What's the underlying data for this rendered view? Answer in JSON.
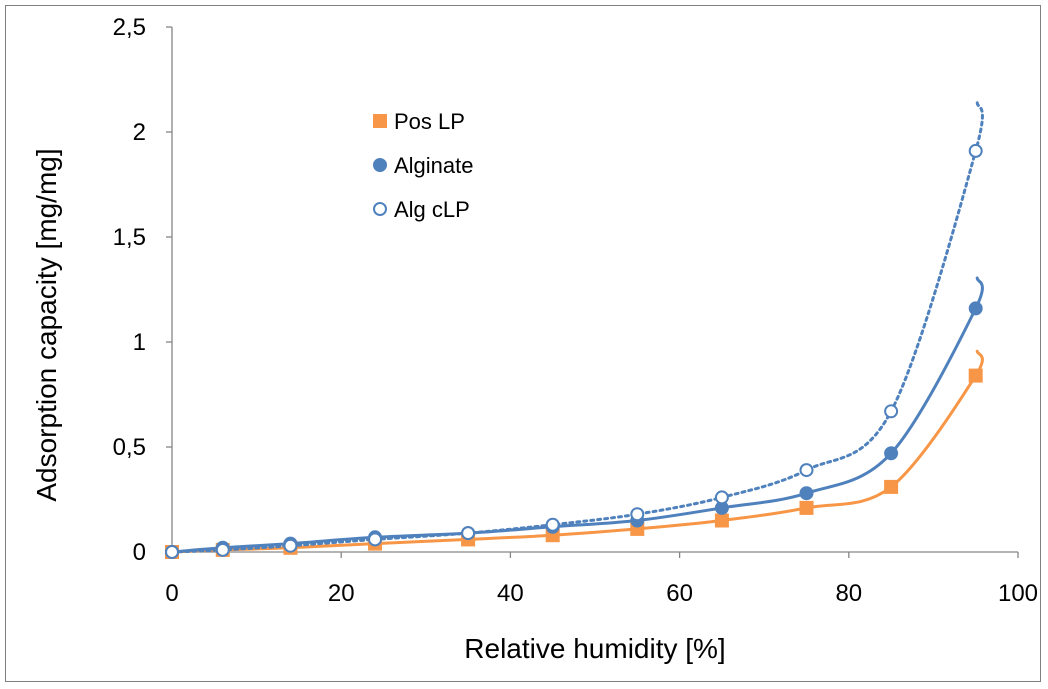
{
  "chart_data": {
    "type": "scatter",
    "title": "",
    "xlabel": "Relative humidity [%]",
    "ylabel": "Adsorption capacity [mg/mg]",
    "xlim": [
      0,
      100
    ],
    "ylim": [
      0,
      2.5
    ],
    "x_ticks": [
      "0",
      "20",
      "40",
      "60",
      "80",
      "100"
    ],
    "y_ticks": [
      "0",
      "0,5",
      "1",
      "1,5",
      "2",
      "2,5"
    ],
    "grid": false,
    "legend_position": "top-left inside",
    "series": [
      {
        "name": "Pos LP",
        "marker": "square",
        "color": "#f79646",
        "trendline": "solid",
        "x": [
          0,
          6,
          14,
          24,
          35,
          45,
          55,
          65,
          75,
          85,
          95
        ],
        "y": [
          0,
          0.01,
          0.02,
          0.04,
          0.06,
          0.08,
          0.11,
          0.15,
          0.21,
          0.31,
          0.84
        ]
      },
      {
        "name": "Alginate",
        "marker": "filled-circle",
        "color": "#4f81bd",
        "trendline": "solid",
        "x": [
          0,
          6,
          14,
          24,
          35,
          45,
          55,
          65,
          75,
          85,
          95
        ],
        "y": [
          0,
          0.02,
          0.04,
          0.07,
          0.09,
          0.12,
          0.15,
          0.21,
          0.28,
          0.47,
          1.16
        ]
      },
      {
        "name": "Alg cLP",
        "marker": "open-circle",
        "color": "#4f81bd",
        "trendline": "dotted",
        "x": [
          0,
          6,
          14,
          24,
          35,
          45,
          55,
          65,
          75,
          85,
          95
        ],
        "y": [
          0,
          0.01,
          0.03,
          0.06,
          0.09,
          0.13,
          0.18,
          0.26,
          0.39,
          0.67,
          1.91
        ]
      }
    ]
  }
}
